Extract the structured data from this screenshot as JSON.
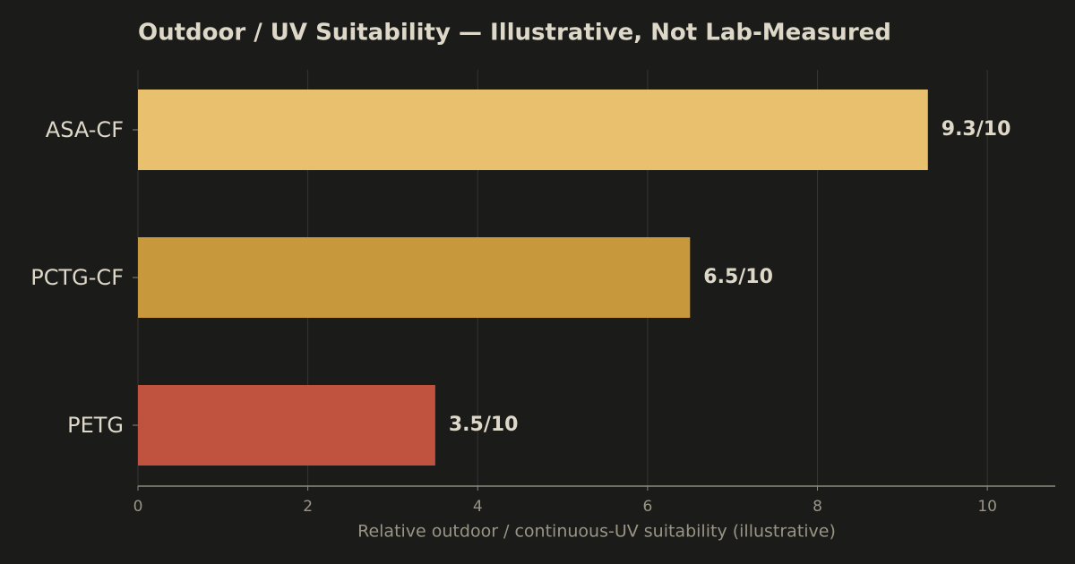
{
  "chart_data": {
    "type": "barh",
    "title": "Outdoor / UV Suitability — Illustrative, Not Lab-Measured",
    "xlabel": "Relative outdoor / continuous-UV suitability (illustrative)",
    "categories": [
      "ASA-CF",
      "PCTG-CF",
      "PETG"
    ],
    "values": [
      9.3,
      6.5,
      3.5
    ],
    "value_labels": [
      "9.3/10",
      "6.5/10",
      "3.5/10"
    ],
    "colors": [
      "#e8c06e",
      "#c8993c",
      "#c05340"
    ],
    "xlim": [
      0,
      10.8
    ],
    "xticks": [
      0,
      2,
      4,
      6,
      8,
      10
    ],
    "grid": true
  }
}
